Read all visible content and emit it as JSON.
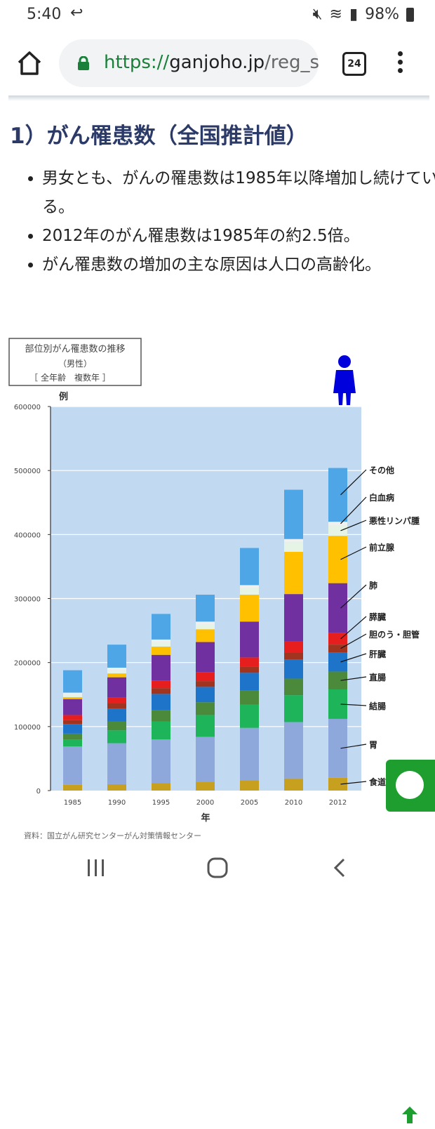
{
  "status_bar": {
    "time": "5:40",
    "battery": "98%"
  },
  "browser": {
    "url_scheme": "https://",
    "url_host": "ganjoho.jp",
    "url_path": "/reg_s",
    "tab_count": "24"
  },
  "article": {
    "heading": "1）がん罹患数（全国推計値）",
    "bullets": [
      "男女とも、がんの罹患数は1985年以降増加し続けている。",
      "2012年のがん罹患数は1985年の約2.5倍。",
      "がん罹患数の増加の主な原因は人口の高齢化。"
    ],
    "source_text": "資料：国立がん研究センターがん対策情報センター"
  },
  "chart_data": {
    "type": "bar",
    "stacked": true,
    "title": [
      "部位別がん罹患数の推移",
      "（男性）",
      "［ 全年齢　複数年 ］"
    ],
    "ylabel": "例",
    "xlabel": "年",
    "ylim": [
      0,
      600000
    ],
    "yticks": [
      0,
      100000,
      200000,
      300000,
      400000,
      500000,
      600000
    ],
    "categories": [
      "1985",
      "1990",
      "1995",
      "2000",
      "2005",
      "2010",
      "2012"
    ],
    "series": [
      {
        "name": "食道",
        "color": "#c8a020",
        "values": [
          9000,
          10000,
          12000,
          14000,
          16000,
          19000,
          20000
        ]
      },
      {
        "name": "胃",
        "color": "#8fa8dc",
        "values": [
          60000,
          64000,
          68000,
          70000,
          82000,
          88000,
          92000
        ]
      },
      {
        "name": "結腸",
        "color": "#1eb45a",
        "values": [
          11000,
          20000,
          28000,
          34000,
          36000,
          42000,
          46000
        ]
      },
      {
        "name": "直腸",
        "color": "#4a8a3a",
        "values": [
          9000,
          14000,
          18000,
          20000,
          22000,
          26000,
          28000
        ]
      },
      {
        "name": "肝臓",
        "color": "#1e74c8",
        "values": [
          15000,
          20000,
          25000,
          24000,
          28000,
          30000,
          30000
        ]
      },
      {
        "name": "胆のう・胆管",
        "color": "#a0341e",
        "values": [
          6000,
          8000,
          9000,
          9000,
          10000,
          11000,
          12000
        ]
      },
      {
        "name": "膵臓",
        "color": "#e61e1e",
        "values": [
          8000,
          9000,
          12000,
          14000,
          14000,
          17000,
          18000
        ]
      },
      {
        "name": "肺",
        "color": "#7030a0",
        "values": [
          25000,
          32000,
          40000,
          47000,
          56000,
          74000,
          78000
        ]
      },
      {
        "name": "前立腺",
        "color": "#ffc000",
        "values": [
          3000,
          6000,
          13000,
          20000,
          42000,
          66000,
          74000
        ]
      },
      {
        "name": "悪性リンパ腫",
        "color": "#e6f4e6",
        "values": [
          4000,
          5000,
          7000,
          8000,
          10000,
          15000,
          16000
        ]
      },
      {
        "name": "白血病",
        "color": "#f0f0f0",
        "values": [
          3000,
          4000,
          4000,
          4000,
          5000,
          5000,
          6000
        ]
      },
      {
        "name": "その他",
        "color": "#4ea6e6",
        "values": [
          35000,
          36000,
          40000,
          42000,
          58000,
          77000,
          84000
        ]
      }
    ]
  }
}
